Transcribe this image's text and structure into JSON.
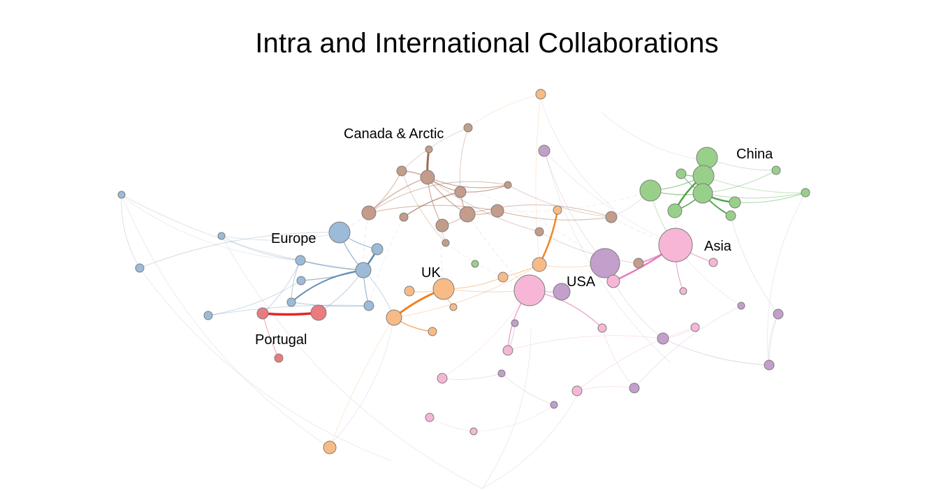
{
  "title": "Intra and International Collaborations",
  "regions": [
    {
      "id": "canada",
      "label": "Canada & Arctic",
      "color": "#c49c8a",
      "edge_color": "#9b5a3c"
    },
    {
      "id": "china",
      "label": "China",
      "color": "#98d089",
      "edge_color": "#3a9a32"
    },
    {
      "id": "europe",
      "label": "Europe",
      "color": "#9bbbd9",
      "edge_color": "#4a7ba6"
    },
    {
      "id": "asia",
      "label": "Asia",
      "color": "#f7b6d6",
      "edge_color": "#e36fb3"
    },
    {
      "id": "uk",
      "label": "UK",
      "color": "#f9bb85",
      "edge_color": "#f07a10"
    },
    {
      "id": "usa",
      "label": "USA",
      "color": "#c39fcb",
      "edge_color": "#9a6aa8"
    },
    {
      "id": "portugal",
      "label": "Portugal",
      "color": "#ea7b7f",
      "edge_color": "#e01a1a"
    }
  ]
}
